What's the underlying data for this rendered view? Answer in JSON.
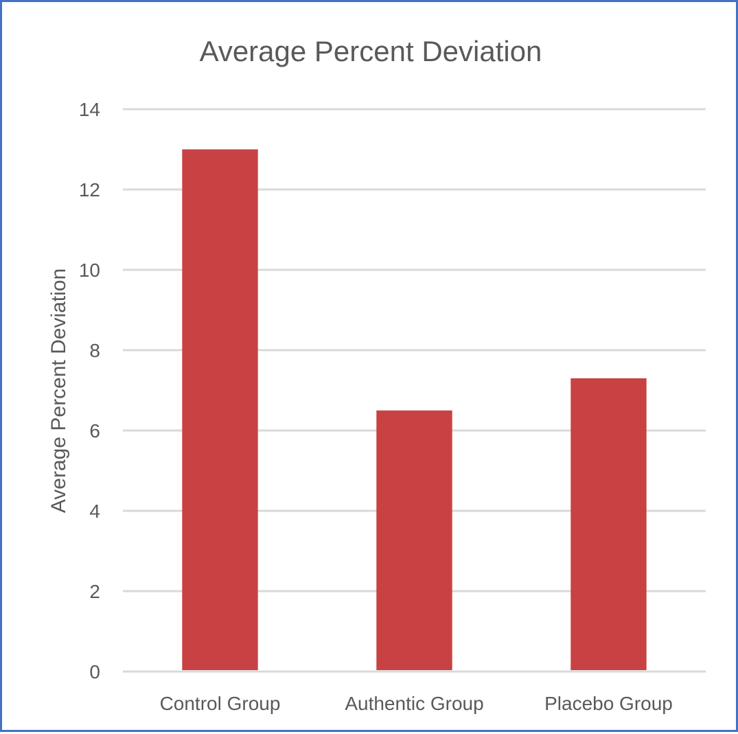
{
  "chart_data": {
    "type": "bar",
    "title": "Average Percent Deviation",
    "xlabel": "",
    "ylabel": "Average Percent Deviation",
    "categories": [
      "Control Group",
      "Authentic Group",
      "Placebo Group"
    ],
    "values": [
      13.0,
      6.5,
      7.3
    ],
    "ylim": [
      0,
      14
    ],
    "yticks": [
      "0",
      "2",
      "4",
      "6",
      "8",
      "10",
      "12",
      "14"
    ],
    "grid": true,
    "legend": "none"
  },
  "colors": {
    "bar": "#c84244",
    "gridline": "#d9d9d9",
    "text": "#595959",
    "frame": "#4472c4"
  }
}
